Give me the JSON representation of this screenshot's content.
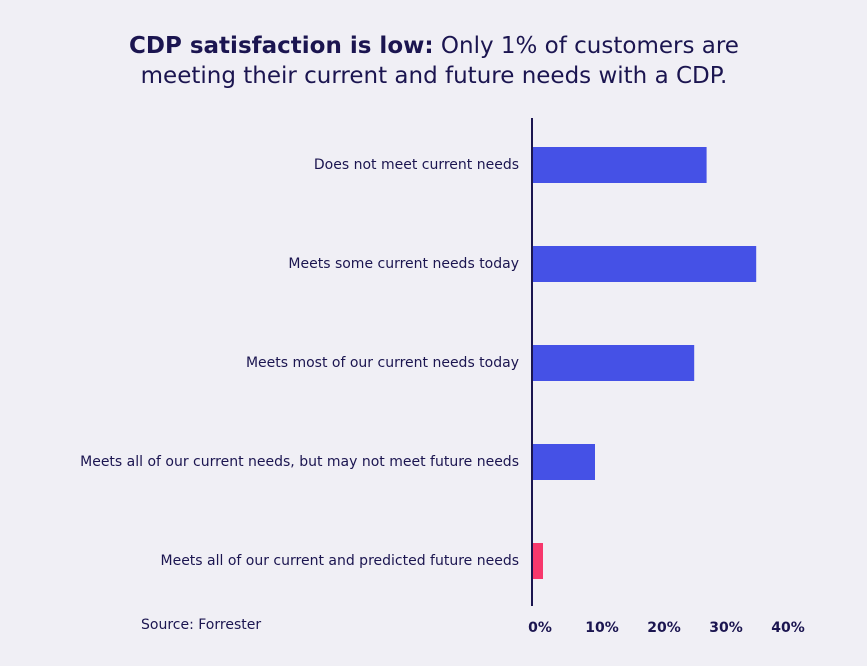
{
  "chart_data": {
    "type": "hbar",
    "title_lead": "CDP satisfaction is low:",
    "title": "Only 1% of customers are meeting their current and future needs with a CDP.",
    "categories": [
      "Does not meet current needs",
      "Meets some current needs today",
      "Meets most of our current needs today",
      "Meets all of our current needs, but may not meet future needs",
      "Meets all of our current and predicted future needs"
    ],
    "values": [
      28,
      36,
      26,
      10,
      1
    ],
    "colors": [
      "#4551e6",
      "#4551e6",
      "#4551e6",
      "#4551e6",
      "#f7376c"
    ],
    "xlim": [
      0,
      40
    ],
    "xticks": [
      {
        "value": 0,
        "label": "0%"
      },
      {
        "value": 10,
        "label": "10%"
      },
      {
        "value": 20,
        "label": "20%"
      },
      {
        "value": 30,
        "label": "30%"
      },
      {
        "value": 40,
        "label": "40%"
      }
    ],
    "source": "Source: Forrester"
  }
}
